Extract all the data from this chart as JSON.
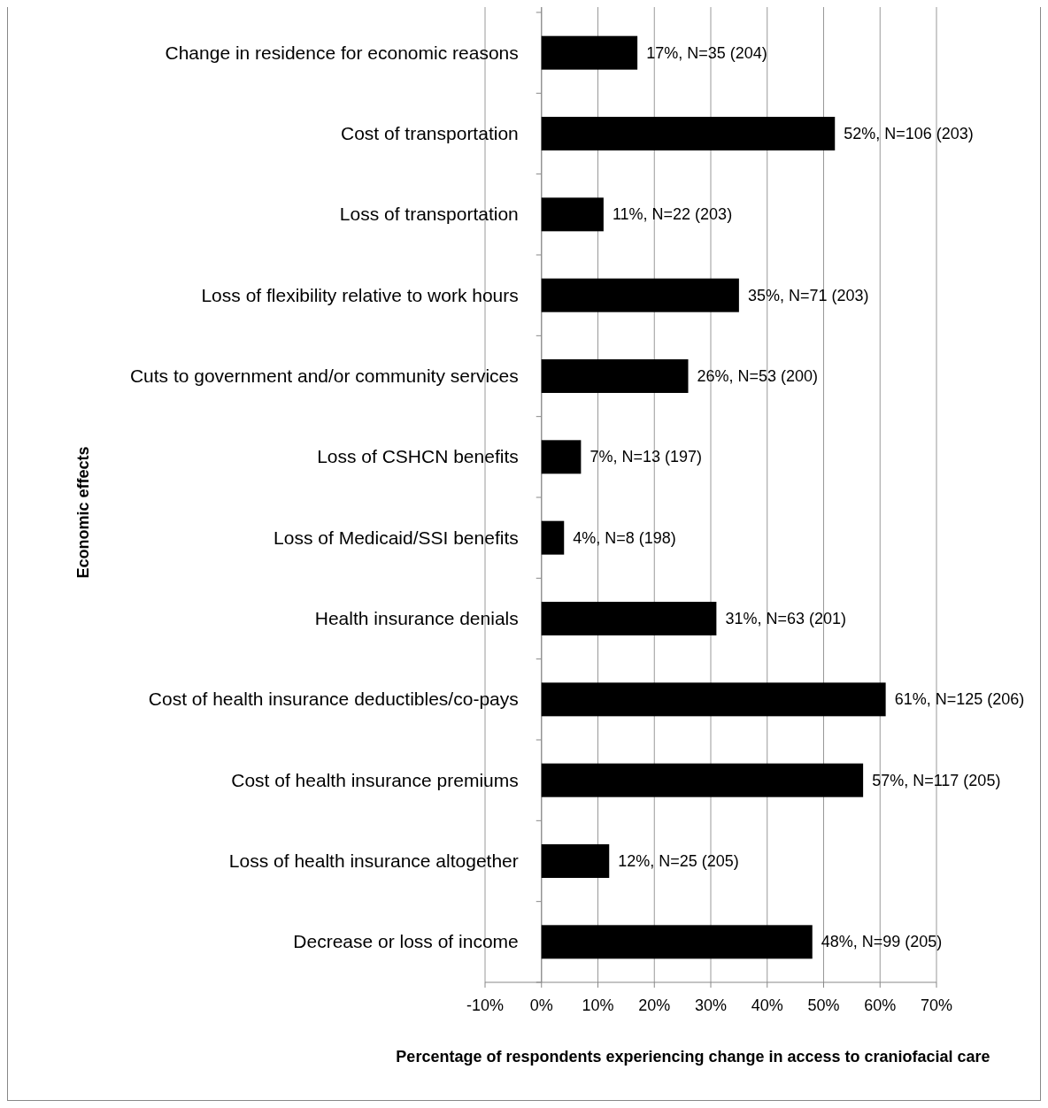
{
  "chart_data": {
    "type": "bar",
    "orientation": "horizontal",
    "xlabel": "Percentage of respondents experiencing change in access to craniofacial care",
    "ylabel": "Economic effects",
    "categories": [
      "Change in residence for economic reasons",
      "Cost of transportation",
      "Loss of transportation",
      "Loss of flexibility relative to work hours",
      "Cuts to government and/or community services",
      "Loss of CSHCN benefits",
      "Loss of Medicaid/SSI benefits",
      "Health insurance denials",
      "Cost of health insurance deductibles/co-pays",
      "Cost of health insurance premiums",
      "Loss of health insurance altogether",
      "Decrease or loss of income"
    ],
    "values": [
      17,
      52,
      11,
      35,
      26,
      7,
      4,
      31,
      61,
      57,
      12,
      48
    ],
    "value_labels": [
      "17%, N=35 (204)",
      "52%, N=106 (203)",
      "11%, N=22 (203)",
      "35%, N=71 (203)",
      "26%, N=53 (200)",
      "7%, N=13 (197)",
      "4%, N=8 (198)",
      "31%, N=63 (201)",
      "61%, N=125 (206)",
      "57%, N=117 (205)",
      "12%, N=25 (205)",
      "48%, N=99 (205)"
    ],
    "color": "#000000",
    "xlim": [
      -10,
      70
    ],
    "xticks": [
      {
        "value": -10,
        "label": "-10%"
      },
      {
        "value": 0,
        "label": "0%"
      },
      {
        "value": 10,
        "label": "10%"
      },
      {
        "value": 20,
        "label": "20%"
      },
      {
        "value": 30,
        "label": "30%"
      },
      {
        "value": 40,
        "label": "40%"
      },
      {
        "value": 50,
        "label": "50%"
      },
      {
        "value": 60,
        "label": "60%"
      },
      {
        "value": 70,
        "label": "70%"
      }
    ],
    "grid": "x"
  }
}
